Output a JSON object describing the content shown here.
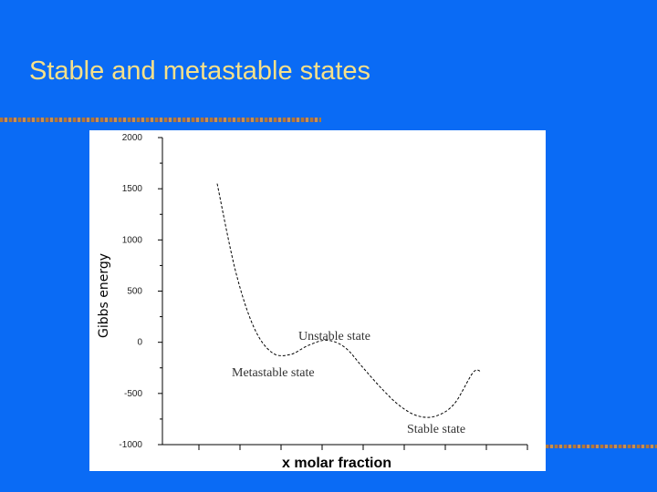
{
  "slide": {
    "title": "Stable and metastable states"
  },
  "chart_data": {
    "type": "line",
    "ylabel": "Gibbs energy",
    "xlabel": "x molar fraction",
    "ylim": [
      -1000,
      2000
    ],
    "y_ticks": [
      "2000",
      "1500",
      "1000",
      "500",
      "0",
      "-500",
      "-1000"
    ],
    "x_tick_count": 9,
    "grid": false,
    "series": [
      {
        "color": "#000000",
        "style": "dashed",
        "x": [
          0.15,
          0.2,
          0.25,
          0.3,
          0.35,
          0.4,
          0.45,
          0.5,
          0.55,
          0.6,
          0.65,
          0.7,
          0.75,
          0.8,
          0.85,
          0.87
        ],
        "values": [
          1550,
          700,
          150,
          -100,
          -120,
          -30,
          20,
          -50,
          -250,
          -450,
          -620,
          -720,
          -720,
          -600,
          -300,
          -280
        ]
      }
    ],
    "annotations": [
      {
        "text": "Unstable state"
      },
      {
        "text": "Metastable state"
      },
      {
        "text": "Stable state"
      }
    ]
  }
}
